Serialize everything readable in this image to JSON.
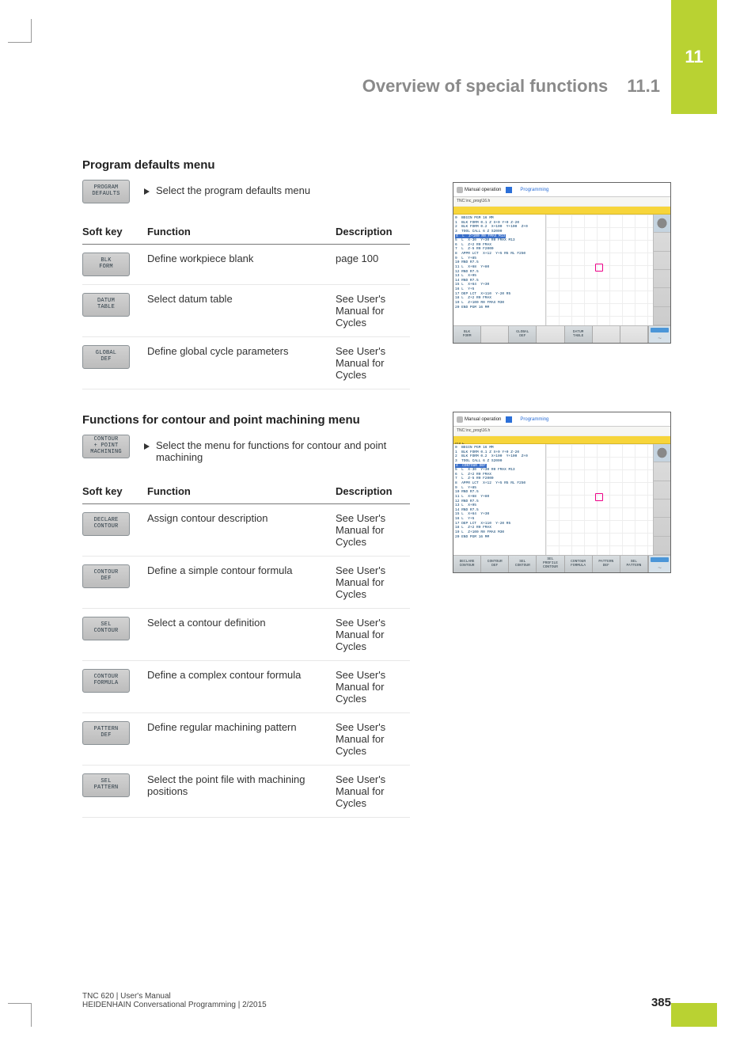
{
  "tab_number": "11",
  "header": {
    "title": "Overview of special functions",
    "section": "11.1"
  },
  "section1": {
    "title": "Program defaults menu",
    "intro_softkey": [
      "PROGRAM",
      "DEFAULTS"
    ],
    "intro_text": "Select the program defaults menu",
    "cols": [
      "Soft key",
      "Function",
      "Description"
    ],
    "rows": [
      {
        "key": [
          "BLK",
          "FORM"
        ],
        "fn": "Define workpiece blank",
        "desc": "page 100"
      },
      {
        "key": [
          "DATUM",
          "TABLE"
        ],
        "fn": "Select datum table",
        "desc": "See User's Manual for Cycles"
      },
      {
        "key": [
          "GLOBAL",
          "DEF"
        ],
        "fn": "Define global cycle parameters",
        "desc": "See User's Manual for Cycles"
      }
    ]
  },
  "section2": {
    "title": "Functions for contour and point machining menu",
    "intro_softkey": [
      "CONTOUR",
      "+ POINT",
      "MACHINING"
    ],
    "intro_text": "Select the menu for functions for contour and point machining",
    "cols": [
      "Soft key",
      "Function",
      "Description"
    ],
    "rows": [
      {
        "key": [
          "DECLARE",
          "CONTOUR"
        ],
        "fn": "Assign contour description",
        "desc": "See User's Manual for Cycles"
      },
      {
        "key": [
          "CONTOUR",
          "DEF"
        ],
        "fn": "Define a simple contour formula",
        "desc": "See User's Manual for Cycles"
      },
      {
        "key": [
          "SEL",
          "CONTOUR"
        ],
        "fn": "Select a contour definition",
        "desc": "See User's Manual for Cycles"
      },
      {
        "key": [
          "CONTOUR",
          "FORMULA"
        ],
        "fn": "Define a complex contour formula",
        "desc": "See User's Manual for Cycles"
      },
      {
        "key": [
          "PATTERN",
          "DEF"
        ],
        "fn": "Define regular machining pattern",
        "desc": "See User's Manual for Cycles"
      },
      {
        "key": [
          "SEL",
          "PATTERN"
        ],
        "fn": "Select the point file with machining positions",
        "desc": "See User's Manual for Cycles"
      }
    ]
  },
  "screenshots": {
    "top_mo": "Manual operation",
    "top_pg": "Programming",
    "sub": "TNC:\\nc_prog\\16.h",
    "code1": "0  BEGIN PGM 16 MM\n1  BLK FORM 0.1 Z X+0 Y+0 Z-20\n2  BLK FORM 0.2  X+100  Y+100  Z+0\n3  TOOL CALL 6 Z S2000",
    "code1_hl": "4  L  Z+100 R0 FMAX M13",
    "code1b": "5  L  X-30  Y+30 R0 FMAX M13\n6  L  Z+2 R0 FMAX\n7  L  Z-5 R0 F2000\n8  APPR LCT  X+12  Y+5 R5 RL F250\n9  L  Y+85\n10 RND R7.5\n11 L  X+68  Y+80\n12 RND R7.5\n13 L  X+95\n14 RND R7.5\n15 L  X+64  Y+30\n16 L  Y+5\n17 DEP LCT  X+110  Y-20 R5\n18 L  Z+2 R0 FMAX\n19 L  Z+100 R0 FMAX M30\n20 END PGM 16 MM",
    "code2_hl": "*16.h",
    "softkeys1": [
      {
        "l": [
          "BLK",
          "FORM"
        ]
      },
      {
        "empty": true
      },
      {
        "l": [
          "GLOBAL",
          "DEF"
        ]
      },
      {
        "empty": true
      },
      {
        "l": [
          "DATUM",
          "TABLE"
        ]
      },
      {
        "empty": true
      },
      {
        "empty": true
      }
    ],
    "softkeys2": [
      {
        "l": [
          "DECLARE",
          "CONTOUR"
        ]
      },
      {
        "l": [
          "CONTOUR",
          "DEF"
        ]
      },
      {
        "l": [
          "SEL",
          "CONTOUR"
        ]
      },
      {
        "l": [
          "SEL",
          "PROFILE",
          "CONTOUR"
        ]
      },
      {
        "l": [
          "CONTOUR",
          "FORMULA"
        ]
      },
      {
        "l": [
          "PATTERN",
          "DEF"
        ]
      },
      {
        "l": [
          "SEL",
          "PATTERN"
        ]
      }
    ]
  },
  "footer": {
    "line1": "TNC 620 | User's Manual",
    "line2": "HEIDENHAIN Conversational Programming | 2/2015",
    "page": "385"
  }
}
